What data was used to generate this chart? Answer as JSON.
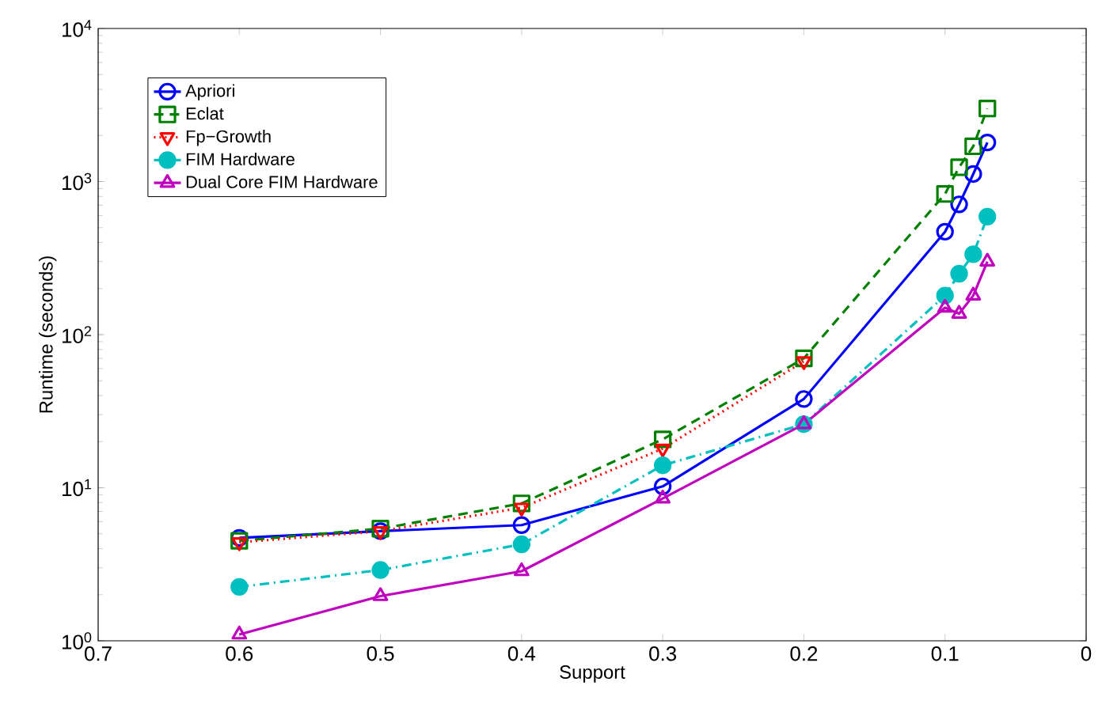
{
  "chart_data": {
    "type": "line",
    "xlabel": "Support",
    "ylabel": "Runtime (seconds)",
    "x": [
      0.6,
      0.5,
      0.4,
      0.3,
      0.2,
      0.1,
      0.09,
      0.08,
      0.07
    ],
    "series": [
      {
        "name": "Apriori",
        "color": "#0000ff",
        "marker": "circle",
        "line_style": "solid",
        "values": [
          4.7,
          5.2,
          5.7,
          10.2,
          38,
          470,
          710,
          1120,
          1800
        ]
      },
      {
        "name": "Eclat",
        "color": "#008000",
        "marker": "square",
        "line_style": "dashed",
        "values": [
          4.5,
          5.4,
          7.9,
          20.7,
          70,
          830,
          1240,
          1700,
          3000
        ]
      },
      {
        "name": "Fp−Growth",
        "color": "#ff0000",
        "marker": "triangle_down",
        "line_style": "dotted",
        "values": [
          4.4,
          5.2,
          7.4,
          18,
          67,
          null,
          null,
          null,
          null
        ]
      },
      {
        "name": "FIM Hardware",
        "color": "#00bfbf",
        "marker": "filled_circle",
        "line_style": "dashdot",
        "values": [
          2.25,
          2.9,
          4.27,
          14,
          26,
          180,
          250,
          335,
          590
        ]
      },
      {
        "name": "Dual Core FIM Hardware",
        "color": "#bf00bf",
        "marker": "triangle",
        "line_style": "solid",
        "values": [
          1.1,
          1.96,
          2.85,
          8.5,
          26,
          150,
          137,
          180,
          300
        ]
      }
    ],
    "log": "y",
    "grid": false,
    "legend": "top left",
    "xlim": [
      0.7,
      0
    ],
    "xticks": [
      0.7,
      0.6,
      0.5,
      0.4,
      0.3,
      0.2,
      0.1,
      0
    ],
    "ylim": [
      1,
      10000
    ],
    "yticks": [
      {
        "value": 1,
        "label": "10$^{0}$"
      },
      {
        "value": 10,
        "label": "10$^{1}$"
      },
      {
        "value": 100,
        "label": "10$^{2}$"
      },
      {
        "value": 1000,
        "label": "10$^{3}$"
      },
      {
        "value": 10000,
        "label": "10$^{4}$"
      }
    ]
  }
}
